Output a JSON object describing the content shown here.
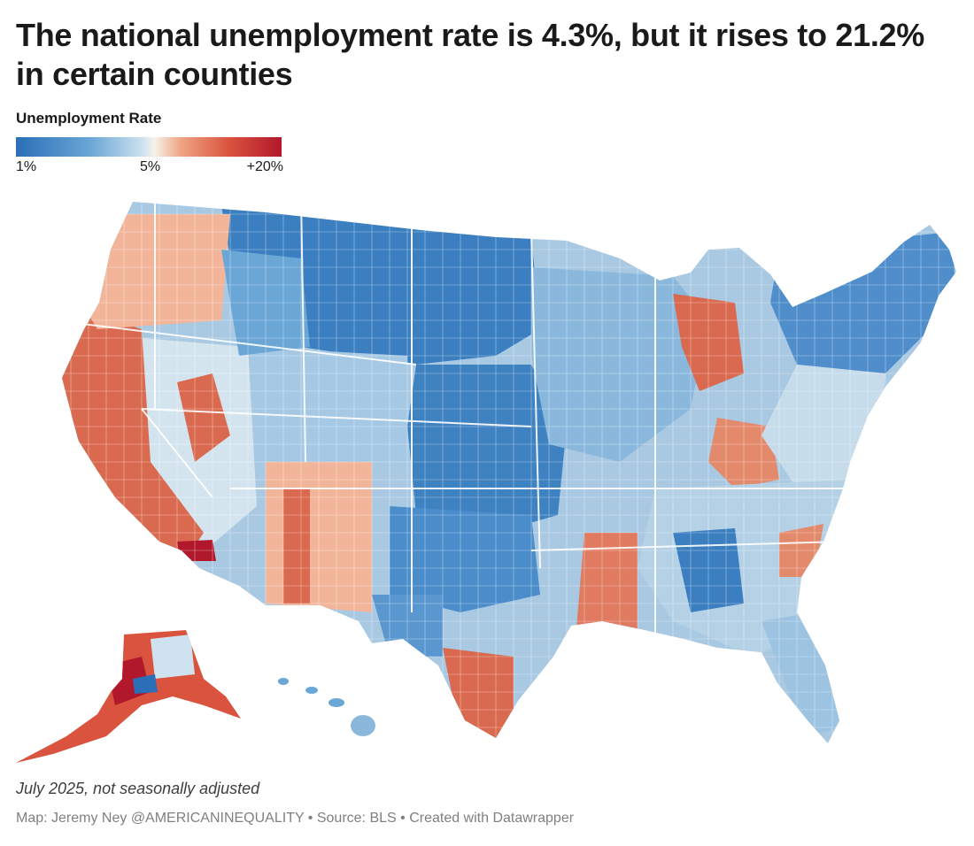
{
  "chart": {
    "title": "The national unemployment rate is 4.3%, but it rises to 21.2% in certain counties",
    "legend": {
      "title": "Unemployment Rate",
      "min_label": "1%",
      "mid_label": "5%",
      "max_label": "+20%",
      "colors": [
        "#2a6fb7",
        "#6aa6d6",
        "#cfe2ef",
        "#f6f2ea",
        "#f0a584",
        "#d9533e",
        "#b2182b"
      ]
    },
    "note": "July 2025, not seasonally adjusted",
    "source": {
      "map_credit": "Map: Jeremy Ney @AMERICANINEQUALITY",
      "separator": " • ",
      "source_text": "Source: BLS",
      "tool": "Created with Datawrapper"
    }
  },
  "map": {
    "type": "choropleth",
    "geography": "US counties",
    "metric": "Unemployment rate",
    "scale_range_pct": [
      1,
      20
    ],
    "midpoint_pct": 5,
    "national_rate_pct": 4.3,
    "max_county_rate_pct": 21.2,
    "regions": [
      "contiguous-us",
      "alaska",
      "hawaii"
    ]
  }
}
